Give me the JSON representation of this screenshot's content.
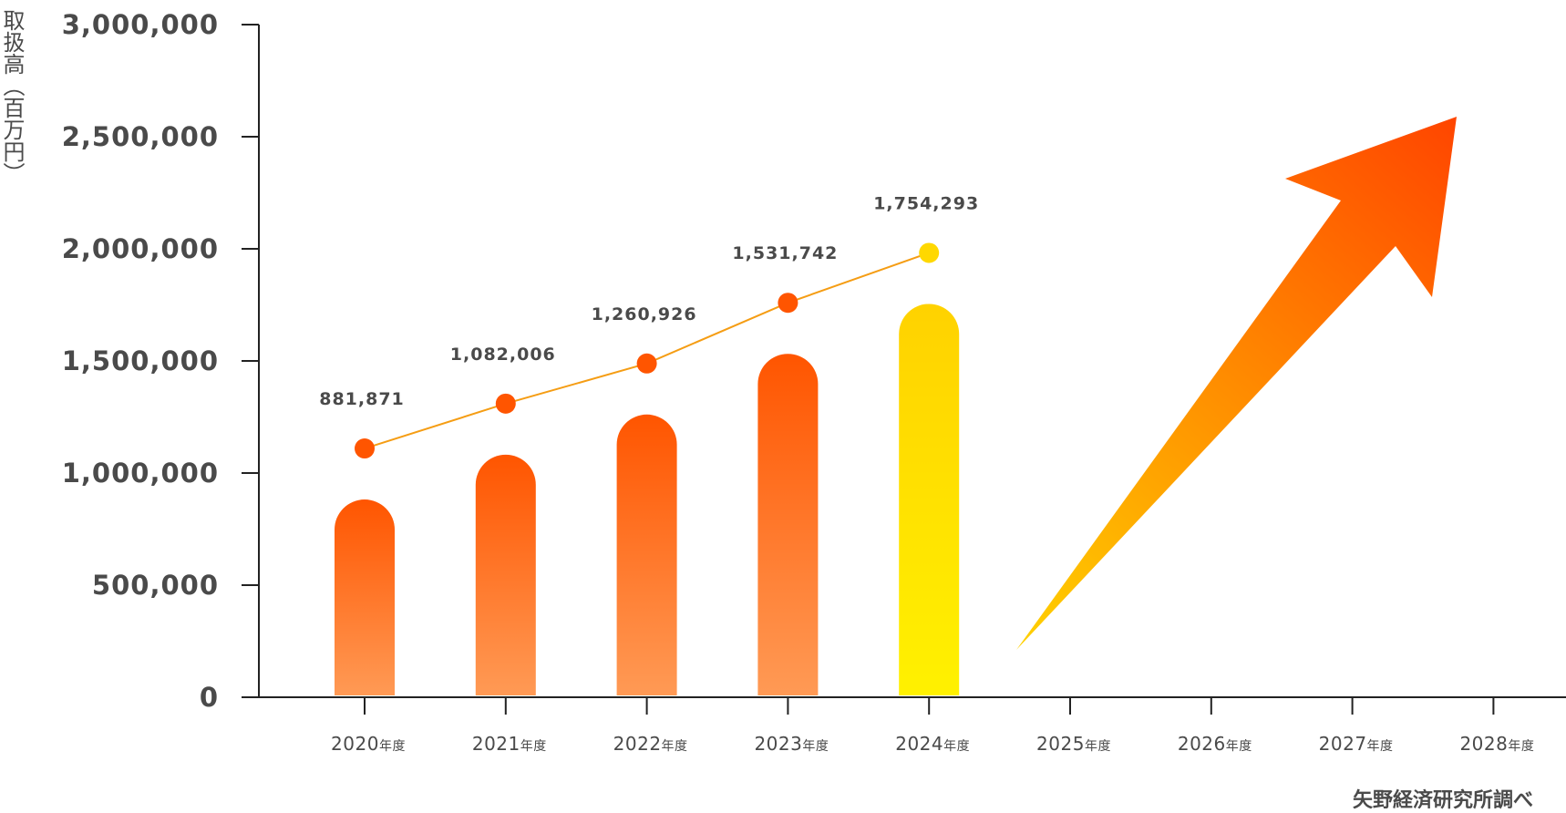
{
  "chart_data": {
    "type": "bar",
    "categories": [
      "2020年度",
      "2021年度",
      "2022年度",
      "2023年度",
      "2024年度",
      "2025年度",
      "2026年度",
      "2027年度",
      "2028年度"
    ],
    "series": [
      {
        "values": [
          881871,
          1082006,
          1260926,
          1531742,
          1754293,
          null,
          null,
          null,
          null
        ]
      }
    ],
    "data_labels": [
      "881,871",
      "1,082,006",
      "1,260,926",
      "1,531,742",
      "1,754,293"
    ],
    "ylabel": "取扱高（百万円）",
    "ylim": [
      0,
      3000000
    ],
    "yticks": [
      0,
      500000,
      1000000,
      1500000,
      2000000,
      2500000,
      3000000
    ],
    "ytick_labels": [
      "0",
      "500,000",
      "1,000,000",
      "1,500,000",
      "2,000,000",
      "2,500,000",
      "3,000,000"
    ],
    "grid": false,
    "trend_arrow": "up-right",
    "colors": {
      "bar_top": "#ff5500",
      "bar_bottom": "#ff9a55",
      "highlight_top": "#ffd200",
      "highlight_bottom": "#fff100",
      "line": "#f59d14",
      "marker": "#ff5500",
      "highlight_marker": "#ffd800",
      "arrow_start": "#ffd200",
      "arrow_end": "#ff4500"
    }
  },
  "source": "矢野経済研究所調べ"
}
